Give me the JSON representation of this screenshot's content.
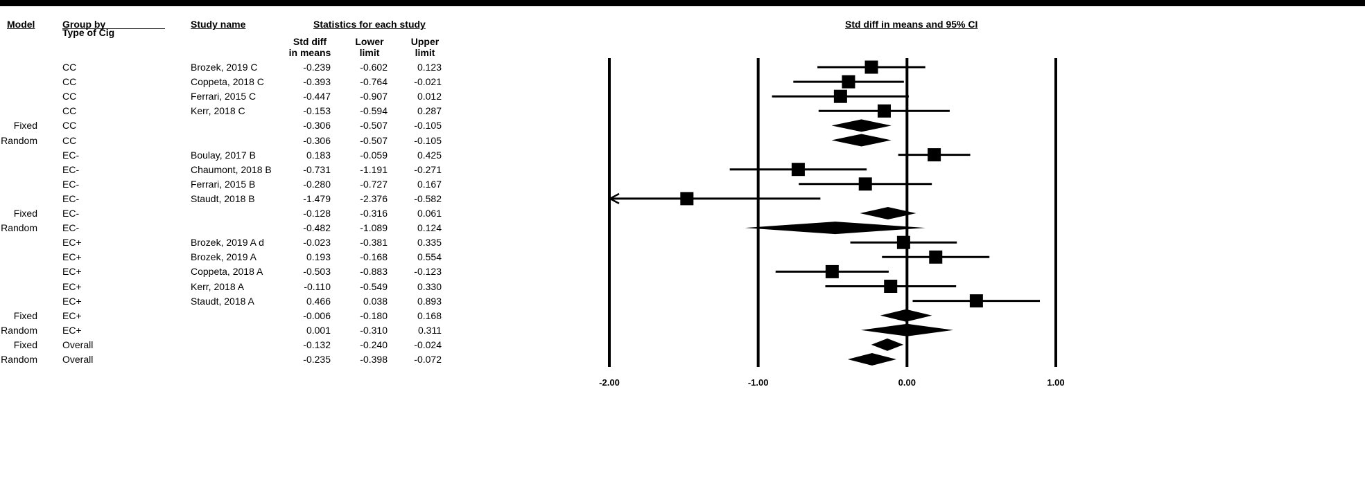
{
  "headers": {
    "model": "Model",
    "group_by": "Group by",
    "group_sub": "Type of Cig",
    "study_name": "Study name",
    "stats": "Statistics for each study",
    "smd": [
      "Std diff",
      "in means"
    ],
    "lower": [
      "Lower",
      "limit"
    ],
    "upper": [
      "Upper",
      "limit"
    ],
    "plot_title": "Std diff in means and 95% CI"
  },
  "rows": [
    {
      "model": "",
      "group": "CC",
      "study": "Brozek, 2019 C",
      "smd": "-0.239",
      "lower": "-0.602",
      "upper": "0.123"
    },
    {
      "model": "",
      "group": "CC",
      "study": "Coppeta, 2018 C",
      "smd": "-0.393",
      "lower": "-0.764",
      "upper": "-0.021"
    },
    {
      "model": "",
      "group": "CC",
      "study": "Ferrari, 2015 C",
      "smd": "-0.447",
      "lower": "-0.907",
      "upper": "0.012"
    },
    {
      "model": "",
      "group": "CC",
      "study": "Kerr, 2018 C",
      "smd": "-0.153",
      "lower": "-0.594",
      "upper": "0.287"
    },
    {
      "model": "Fixed",
      "group": "CC",
      "study": "",
      "smd": "-0.306",
      "lower": "-0.507",
      "upper": "-0.105"
    },
    {
      "model": "Random",
      "group": "CC",
      "study": "",
      "smd": "-0.306",
      "lower": "-0.507",
      "upper": "-0.105"
    },
    {
      "model": "",
      "group": "EC-",
      "study": "Boulay, 2017 B",
      "smd": "0.183",
      "lower": "-0.059",
      "upper": "0.425"
    },
    {
      "model": "",
      "group": "EC-",
      "study": "Chaumont, 2018 B",
      "smd": "-0.731",
      "lower": "-1.191",
      "upper": "-0.271"
    },
    {
      "model": "",
      "group": "EC-",
      "study": "Ferrari, 2015 B",
      "smd": "-0.280",
      "lower": "-0.727",
      "upper": "0.167"
    },
    {
      "model": "",
      "group": "EC-",
      "study": "Staudt, 2018 B",
      "smd": "-1.479",
      "lower": "-2.376",
      "upper": "-0.582"
    },
    {
      "model": "Fixed",
      "group": "EC-",
      "study": "",
      "smd": "-0.128",
      "lower": "-0.316",
      "upper": "0.061"
    },
    {
      "model": "Random",
      "group": "EC-",
      "study": "",
      "smd": "-0.482",
      "lower": "-1.089",
      "upper": "0.124"
    },
    {
      "model": "",
      "group": "EC+",
      "study": "Brozek, 2019 A d",
      "smd": "-0.023",
      "lower": "-0.381",
      "upper": "0.335"
    },
    {
      "model": "",
      "group": "EC+",
      "study": "Brozek, 2019 A",
      "smd": "0.193",
      "lower": "-0.168",
      "upper": "0.554"
    },
    {
      "model": "",
      "group": "EC+",
      "study": "Coppeta, 2018 A",
      "smd": "-0.503",
      "lower": "-0.883",
      "upper": "-0.123"
    },
    {
      "model": "",
      "group": "EC+",
      "study": "Kerr, 2018 A",
      "smd": "-0.110",
      "lower": "-0.549",
      "upper": "0.330"
    },
    {
      "model": "",
      "group": "EC+",
      "study": "Staudt, 2018 A",
      "smd": "0.466",
      "lower": "0.038",
      "upper": "0.893"
    },
    {
      "model": "Fixed",
      "group": "EC+",
      "study": "",
      "smd": "-0.006",
      "lower": "-0.180",
      "upper": "0.168"
    },
    {
      "model": "Random",
      "group": "EC+",
      "study": "",
      "smd": "0.001",
      "lower": "-0.310",
      "upper": "0.311"
    },
    {
      "model": "Fixed",
      "group": "Overall",
      "study": "",
      "smd": "-0.132",
      "lower": "-0.240",
      "upper": "-0.024"
    },
    {
      "model": "Random",
      "group": "Overall",
      "study": "",
      "smd": "-0.235",
      "lower": "-0.398",
      "upper": "-0.072"
    }
  ],
  "chart_data": {
    "type": "forest",
    "title": "Std diff in means and 95% CI",
    "xlim": [
      -2.0,
      1.0
    ],
    "x_ticks": [
      -2.0,
      -1.0,
      0.0,
      1.0
    ],
    "x_tick_labels": [
      "-2.00",
      "-1.00",
      "0.00",
      "1.00"
    ],
    "vertical_reference_lines": [
      -2.0,
      -1.0,
      0.0,
      1.0
    ],
    "points": [
      {
        "kind": "study",
        "est": -0.239,
        "lo": -0.602,
        "hi": 0.123
      },
      {
        "kind": "study",
        "est": -0.393,
        "lo": -0.764,
        "hi": -0.021
      },
      {
        "kind": "study",
        "est": -0.447,
        "lo": -0.907,
        "hi": 0.012
      },
      {
        "kind": "study",
        "est": -0.153,
        "lo": -0.594,
        "hi": 0.287
      },
      {
        "kind": "summary",
        "est": -0.306,
        "lo": -0.507,
        "hi": -0.105
      },
      {
        "kind": "summary",
        "est": -0.306,
        "lo": -0.507,
        "hi": -0.105
      },
      {
        "kind": "study",
        "est": 0.183,
        "lo": -0.059,
        "hi": 0.425
      },
      {
        "kind": "study",
        "est": -0.731,
        "lo": -1.191,
        "hi": -0.271
      },
      {
        "kind": "study",
        "est": -0.28,
        "lo": -0.727,
        "hi": 0.167
      },
      {
        "kind": "study",
        "est": -1.479,
        "lo": -2.376,
        "hi": -0.582
      },
      {
        "kind": "summary",
        "est": -0.128,
        "lo": -0.316,
        "hi": 0.061
      },
      {
        "kind": "summary",
        "est": -0.482,
        "lo": -1.089,
        "hi": 0.124
      },
      {
        "kind": "study",
        "est": -0.023,
        "lo": -0.381,
        "hi": 0.335
      },
      {
        "kind": "study",
        "est": 0.193,
        "lo": -0.168,
        "hi": 0.554
      },
      {
        "kind": "study",
        "est": -0.503,
        "lo": -0.883,
        "hi": -0.123
      },
      {
        "kind": "study",
        "est": -0.11,
        "lo": -0.549,
        "hi": 0.33
      },
      {
        "kind": "study",
        "est": 0.466,
        "lo": 0.038,
        "hi": 0.893
      },
      {
        "kind": "summary",
        "est": -0.006,
        "lo": -0.18,
        "hi": 0.168
      },
      {
        "kind": "summary",
        "est": 0.001,
        "lo": -0.31,
        "hi": 0.311
      },
      {
        "kind": "summary",
        "est": -0.132,
        "lo": -0.24,
        "hi": -0.024
      },
      {
        "kind": "summary",
        "est": -0.235,
        "lo": -0.398,
        "hi": -0.072
      }
    ]
  }
}
